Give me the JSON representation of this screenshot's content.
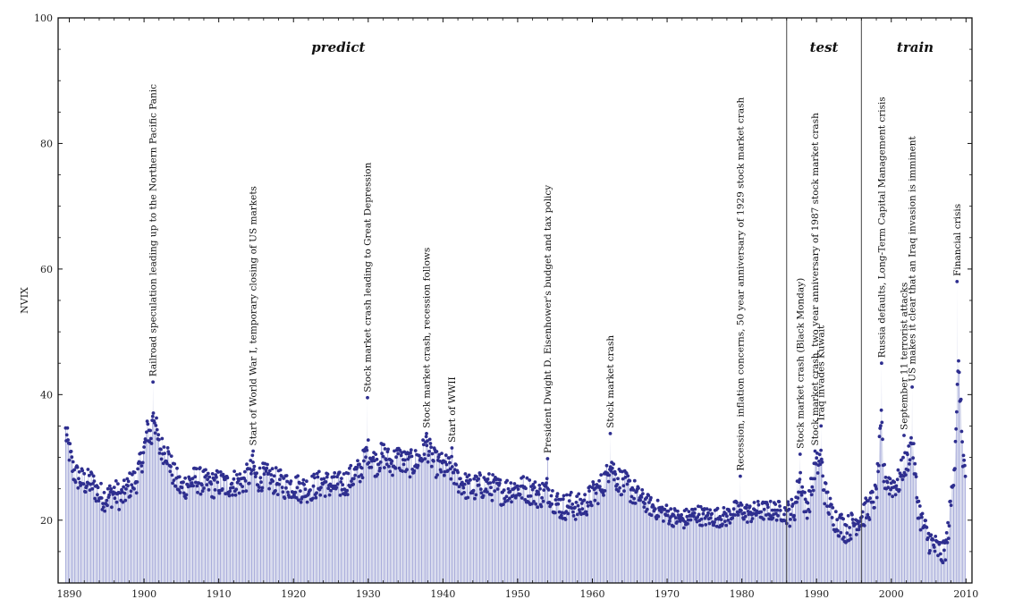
{
  "chart_data": {
    "type": "area",
    "xlabel": "",
    "ylabel": "NVIX",
    "xlim": [
      1888.5,
      2010.8
    ],
    "ylim": [
      10,
      100
    ],
    "xticks": [
      1890,
      1900,
      1910,
      1920,
      1930,
      1940,
      1950,
      1960,
      1970,
      1980,
      1990,
      2000,
      2010
    ],
    "xtick_labels": [
      "1890",
      "1900",
      "1910",
      "1920",
      "1930",
      "1940",
      "1950",
      "1960",
      "1970",
      "1980",
      "1990",
      "2000",
      "2010"
    ],
    "yticks": [
      20,
      40,
      60,
      80,
      100
    ],
    "ytick_labels": [
      "20",
      "40",
      "60",
      "80",
      "100"
    ],
    "grid": false,
    "line_color": "#2e2e8f",
    "fill_color": "#d9dcee",
    "region_dividers": [
      1986.0,
      1996.0
    ],
    "regions": [
      {
        "label": "predict",
        "x": 1926.0
      },
      {
        "label": "test",
        "x": 1991.0
      },
      {
        "label": "train",
        "x": 2003.2
      }
    ],
    "annotations": [
      {
        "text": "Railroad speculation leading up to the Northern Pacific Panic",
        "x": 1901.2,
        "y": 42.0
      },
      {
        "text": "Start of World War I, temporary closing of US markets",
        "x": 1914.6,
        "y": 31.0
      },
      {
        "text": "Stock market crash leading to Great Depression",
        "x": 1929.9,
        "y": 39.5
      },
      {
        "text": "Stock market crash, recession follows",
        "x": 1937.8,
        "y": 33.8
      },
      {
        "text": "Start of WWII",
        "x": 1941.2,
        "y": 31.5
      },
      {
        "text": "President Dwight D. Eisenhower's budget and tax policy",
        "x": 1954.0,
        "y": 29.8
      },
      {
        "text": "Stock market crash",
        "x": 1962.4,
        "y": 33.8
      },
      {
        "text": "Recession, inflation concerns, 50 year anniversary of 1929 stock market crash",
        "x": 1979.8,
        "y": 27.0
      },
      {
        "text": "Stock market crash (Black Monday)",
        "x": 1987.8,
        "y": 30.5
      },
      {
        "text": "Stock market crash, two year anniversary of 1987 stock market crash",
        "x": 1989.8,
        "y": 31.0
      },
      {
        "text": "Iraq invades Kuwait",
        "x": 1990.6,
        "y": 35.0
      },
      {
        "text": "Russia defaults, Long-Term Capital Management crisis",
        "x": 1998.7,
        "y": 45.0
      },
      {
        "text": "September 11 terrorist attacks",
        "x": 2001.7,
        "y": 33.5
      },
      {
        "text": "US makes it clear that an Iraq invasion is imminent",
        "x": 2002.8,
        "y": 41.2
      },
      {
        "text": "Financial crisis",
        "x": 2008.8,
        "y": 58.0
      }
    ],
    "series": [
      {
        "anchors_x": [
          1889.5,
          1890.0,
          1890.5,
          1891.0,
          1892.0,
          1893.0,
          1894.0,
          1895.0,
          1896.0,
          1897.0,
          1898.0,
          1899.0,
          1900.0,
          1900.5,
          1901.0,
          1901.2,
          1902.0,
          1903.0,
          1904.0,
          1905.0,
          1906.0,
          1907.0,
          1908.0,
          1909.0,
          1910.0,
          1911.0,
          1912.0,
          1913.0,
          1914.0,
          1914.6,
          1915.0,
          1916.0,
          1917.0,
          1918.0,
          1919.0,
          1920.0,
          1921.0,
          1922.0,
          1923.0,
          1924.0,
          1925.0,
          1926.0,
          1927.0,
          1928.0,
          1929.0,
          1929.9,
          1930.5,
          1931.0,
          1932.0,
          1933.0,
          1934.0,
          1935.0,
          1936.0,
          1937.0,
          1937.8,
          1938.5,
          1939.0,
          1940.0,
          1941.2,
          1942.0,
          1943.0,
          1944.0,
          1945.0,
          1946.0,
          1947.0,
          1948.0,
          1949.0,
          1950.0,
          1951.0,
          1952.0,
          1953.0,
          1954.0,
          1955.0,
          1956.0,
          1957.0,
          1958.0,
          1959.0,
          1960.0,
          1961.0,
          1962.0,
          1962.4,
          1963.0,
          1964.0,
          1965.0,
          1966.0,
          1967.0,
          1968.0,
          1969.0,
          1970.0,
          1971.0,
          1972.0,
          1973.0,
          1974.0,
          1975.0,
          1976.0,
          1977.0,
          1978.0,
          1979.0,
          1980.0,
          1981.0,
          1982.0,
          1983.0,
          1984.0,
          1985.0,
          1986.0,
          1987.0,
          1987.8,
          1988.5,
          1989.0,
          1989.8,
          1990.6,
          1991.0,
          1992.0,
          1993.0,
          1994.0,
          1995.0,
          1996.0,
          1997.0,
          1998.0,
          1998.7,
          1999.0,
          2000.0,
          2001.0,
          2001.7,
          2002.0,
          2002.8,
          2003.0,
          2003.5,
          2004.0,
          2005.0,
          2006.0,
          2006.5,
          2007.0,
          2007.5,
          2008.0,
          2008.5,
          2008.8,
          2009.0,
          2009.3,
          2009.6,
          2010.0
        ],
        "anchors_y": [
          34.0,
          31.0,
          28.0,
          27.0,
          26.0,
          26.0,
          24.0,
          23.5,
          24.5,
          23.5,
          25.5,
          26.5,
          31.0,
          34.5,
          33.0,
          38.0,
          31.5,
          31.0,
          27.0,
          25.0,
          26.0,
          26.5,
          26.0,
          25.5,
          26.0,
          25.5,
          26.0,
          26.0,
          27.0,
          28.5,
          26.5,
          27.0,
          26.5,
          26.0,
          25.5,
          25.5,
          25.0,
          25.0,
          25.5,
          26.0,
          25.5,
          25.5,
          26.0,
          27.0,
          28.0,
          31.0,
          30.0,
          29.0,
          30.5,
          29.0,
          30.0,
          29.0,
          29.0,
          30.0,
          32.0,
          30.0,
          29.0,
          28.5,
          28.0,
          26.5,
          25.5,
          25.0,
          25.5,
          25.5,
          25.0,
          24.5,
          25.0,
          25.0,
          25.0,
          24.5,
          24.0,
          25.0,
          23.0,
          22.0,
          22.5,
          22.0,
          22.5,
          24.0,
          25.0,
          27.0,
          30.0,
          27.0,
          26.0,
          25.0,
          24.0,
          23.0,
          22.0,
          21.5,
          21.0,
          20.5,
          20.0,
          20.5,
          21.0,
          20.5,
          20.5,
          20.5,
          20.5,
          21.5,
          21.5,
          21.0,
          21.5,
          21.5,
          21.5,
          21.5,
          21.0,
          21.5,
          27.0,
          22.0,
          23.0,
          28.0,
          30.0,
          25.0,
          21.0,
          19.5,
          18.5,
          19.5,
          20.5,
          22.0,
          24.0,
          36.0,
          27.0,
          25.5,
          26.0,
          29.0,
          28.5,
          33.0,
          30.0,
          23.0,
          20.0,
          17.0,
          15.5,
          15.0,
          14.5,
          17.0,
          23.0,
          30.0,
          40.0,
          44.0,
          38.0,
          30.0,
          27.0,
          24.0
        ]
      }
    ]
  }
}
